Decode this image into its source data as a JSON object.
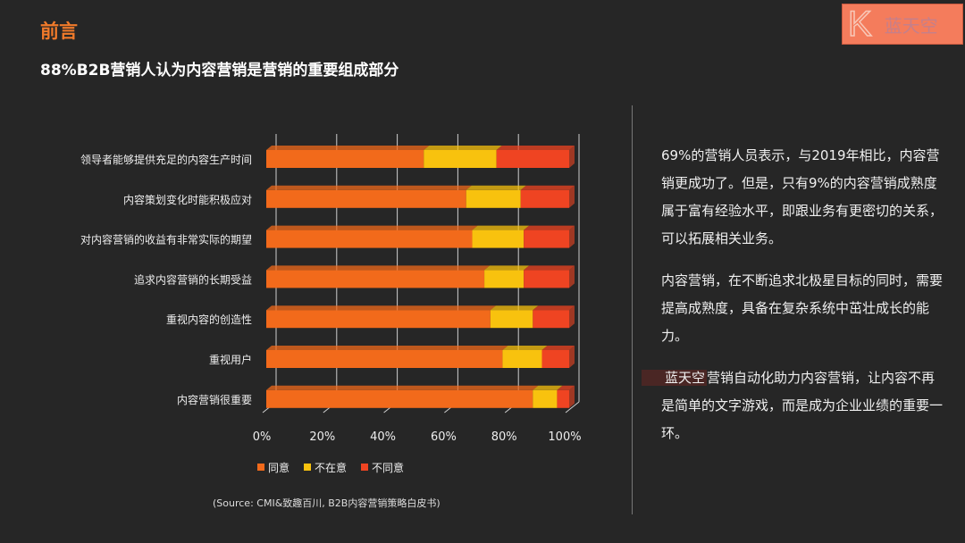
{
  "header": {
    "title": "前言",
    "subtitle": "88%B2B营销人认为内容营销是营销的重要组成部分"
  },
  "logo": {
    "letter": "K",
    "text": "蓝天空"
  },
  "right_text": {
    "p1": "69%的营销人员表示，与2019年相比，内容营销更成功了。但是，只有9%的内容营销成熟度属于富有经验水平，即跟业务有更密切的关系，可以拓展相关业务。",
    "p2": "内容营销，在不断追求北极星目标的同时，需要提高成熟度，具备在复杂系统中茁壮成长的能力。",
    "p3_highlight": "蓝天空",
    "p3": "营销自动化助力内容营销，让内容不再是简单的文字游戏，而是成为企业业绩的重要一环。"
  },
  "source": "(Source: CMI&致趣百川, B2B内容营销策略白皮书)",
  "chart_data": {
    "type": "bar",
    "orientation": "horizontal",
    "stacked": "percent",
    "categories": [
      "领导者能够提供充足的内容生产时间",
      "内容策划变化时能积极应对",
      "对内容营销的收益有非常实际的期望",
      "追求内容营销的长期受益",
      "重视内容的创造性",
      "重视用户",
      "内容营销很重要"
    ],
    "series": [
      {
        "name": "同意",
        "color": "#f26a1b",
        "values": [
          52,
          66,
          68,
          72,
          74,
          78,
          88
        ]
      },
      {
        "name": "不在意",
        "color": "#f8c20e",
        "values": [
          24,
          18,
          17,
          13,
          14,
          13,
          8
        ]
      },
      {
        "name": "不同意",
        "color": "#ef4422",
        "values": [
          24,
          16,
          15,
          15,
          12,
          9,
          4
        ]
      }
    ],
    "xlim": [
      0,
      100
    ],
    "xticks": [
      "0%",
      "20%",
      "40%",
      "60%",
      "80%",
      "100%"
    ],
    "grid": true,
    "legend": "bottom"
  }
}
